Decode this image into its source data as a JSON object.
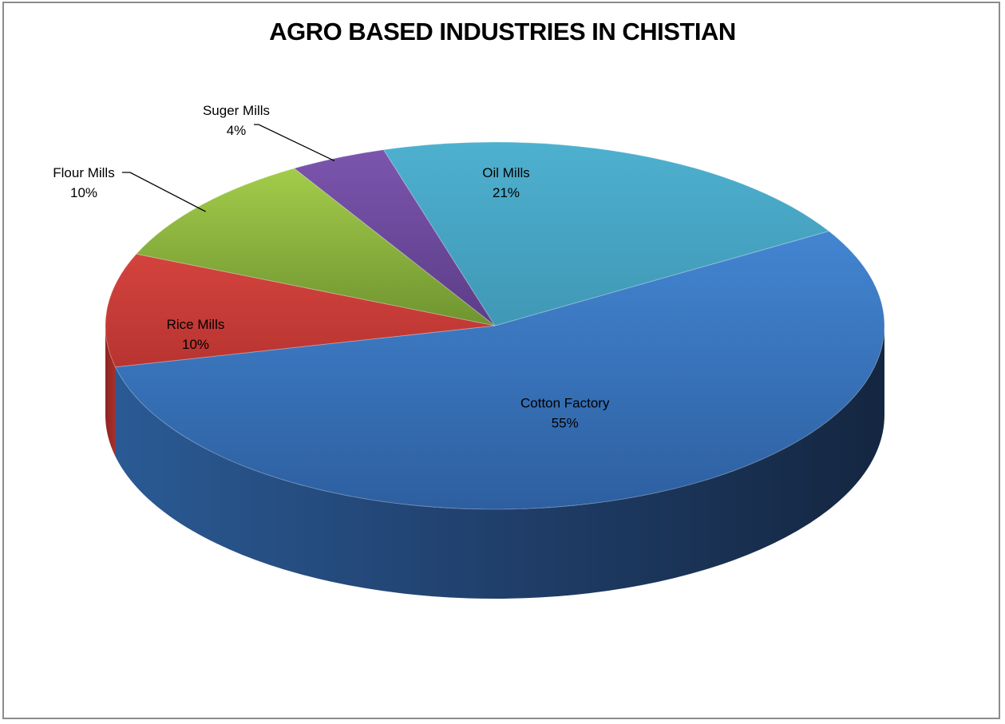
{
  "chart_data": {
    "type": "pie",
    "title": "AGRO BASED INDUSTRIES IN CHISTIAN",
    "slices": [
      {
        "name": "Cotton Factory",
        "value": 55,
        "label": "55%",
        "color": "#3d7cc9"
      },
      {
        "name": "Rice Mills",
        "value": 10,
        "label": "10%",
        "color": "#c43a36"
      },
      {
        "name": "Flour Mills",
        "value": 10,
        "label": "10%",
        "color": "#8ab83e"
      },
      {
        "name": "Suger Mills",
        "value": 4,
        "label": "4%",
        "color": "#6e4a9e"
      },
      {
        "name": "Oil Mills",
        "value": 21,
        "label": "21%",
        "color": "#48a8c6"
      }
    ],
    "style": "3d-pie",
    "legend": "none",
    "data_labels": "category-and-percent"
  }
}
